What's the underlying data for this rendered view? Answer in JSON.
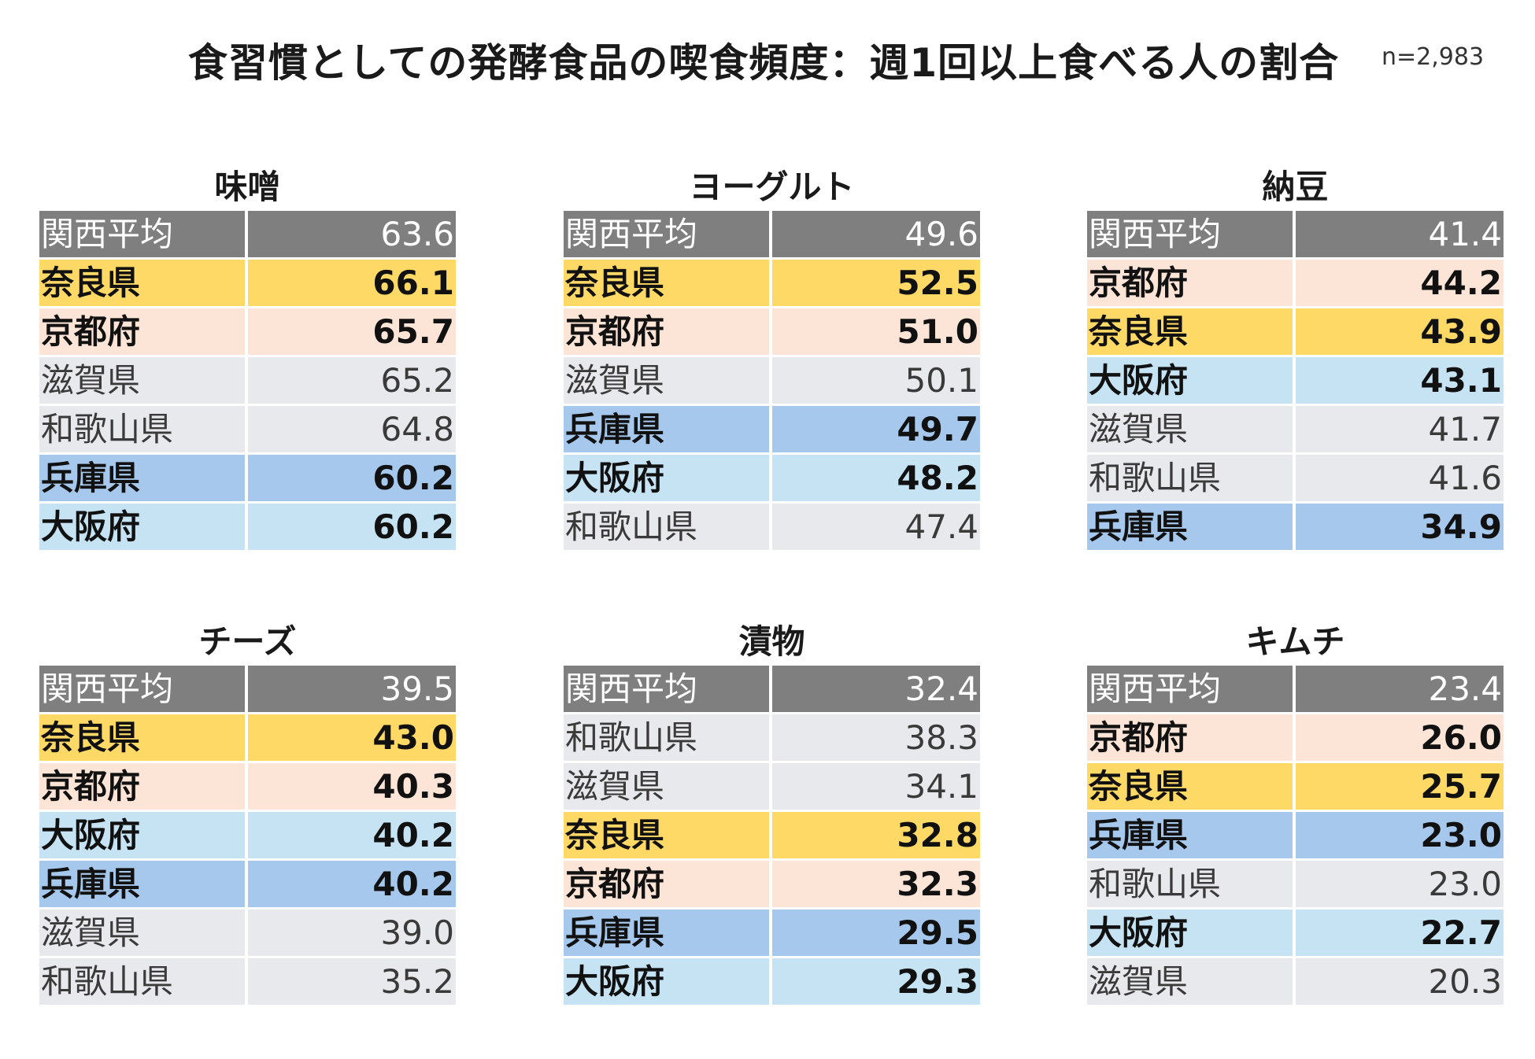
{
  "header": {
    "title": "食習慣としての発酵食品の喫食頻度：週1回以上食べる人の割合",
    "sample": "n=2,983"
  },
  "colors": {
    "average": "#7f7f7f",
    "nara": "#ffd966",
    "kyoto": "#fce4d6",
    "hyogo": "#a6c8ec",
    "osaka": "#c5e3f3",
    "other": "#e7e9ec"
  },
  "chart_data": [
    {
      "type": "table",
      "title": "味噌",
      "rows": [
        {
          "label": "関西平均",
          "value": "63.6",
          "style": "average"
        },
        {
          "label": "奈良県",
          "value": "66.1",
          "style": "nara"
        },
        {
          "label": "京都府",
          "value": "65.7",
          "style": "kyoto"
        },
        {
          "label": "滋賀県",
          "value": "65.2",
          "style": "other"
        },
        {
          "label": "和歌山県",
          "value": "64.8",
          "style": "other"
        },
        {
          "label": "兵庫県",
          "value": "60.2",
          "style": "hyogo"
        },
        {
          "label": "大阪府",
          "value": "60.2",
          "style": "osaka"
        }
      ]
    },
    {
      "type": "table",
      "title": "ヨーグルト",
      "rows": [
        {
          "label": "関西平均",
          "value": "49.6",
          "style": "average"
        },
        {
          "label": "奈良県",
          "value": "52.5",
          "style": "nara"
        },
        {
          "label": "京都府",
          "value": "51.0",
          "style": "kyoto"
        },
        {
          "label": "滋賀県",
          "value": "50.1",
          "style": "other"
        },
        {
          "label": "兵庫県",
          "value": "49.7",
          "style": "hyogo"
        },
        {
          "label": "大阪府",
          "value": "48.2",
          "style": "osaka"
        },
        {
          "label": "和歌山県",
          "value": "47.4",
          "style": "other"
        }
      ]
    },
    {
      "type": "table",
      "title": "納豆",
      "rows": [
        {
          "label": "関西平均",
          "value": "41.4",
          "style": "average"
        },
        {
          "label": "京都府",
          "value": "44.2",
          "style": "kyoto"
        },
        {
          "label": "奈良県",
          "value": "43.9",
          "style": "nara"
        },
        {
          "label": "大阪府",
          "value": "43.1",
          "style": "osaka"
        },
        {
          "label": "滋賀県",
          "value": "41.7",
          "style": "other"
        },
        {
          "label": "和歌山県",
          "value": "41.6",
          "style": "other"
        },
        {
          "label": "兵庫県",
          "value": "34.9",
          "style": "hyogo"
        }
      ]
    },
    {
      "type": "table",
      "title": "チーズ",
      "rows": [
        {
          "label": "関西平均",
          "value": "39.5",
          "style": "average"
        },
        {
          "label": "奈良県",
          "value": "43.0",
          "style": "nara"
        },
        {
          "label": "京都府",
          "value": "40.3",
          "style": "kyoto"
        },
        {
          "label": "大阪府",
          "value": "40.2",
          "style": "osaka"
        },
        {
          "label": "兵庫県",
          "value": "40.2",
          "style": "hyogo"
        },
        {
          "label": "滋賀県",
          "value": "39.0",
          "style": "other"
        },
        {
          "label": "和歌山県",
          "value": "35.2",
          "style": "other"
        }
      ]
    },
    {
      "type": "table",
      "title": "漬物",
      "rows": [
        {
          "label": "関西平均",
          "value": "32.4",
          "style": "average"
        },
        {
          "label": "和歌山県",
          "value": "38.3",
          "style": "other"
        },
        {
          "label": "滋賀県",
          "value": "34.1",
          "style": "other"
        },
        {
          "label": "奈良県",
          "value": "32.8",
          "style": "nara"
        },
        {
          "label": "京都府",
          "value": "32.3",
          "style": "kyoto"
        },
        {
          "label": "兵庫県",
          "value": "29.5",
          "style": "hyogo"
        },
        {
          "label": "大阪府",
          "value": "29.3",
          "style": "osaka"
        }
      ]
    },
    {
      "type": "table",
      "title": "キムチ",
      "rows": [
        {
          "label": "関西平均",
          "value": "23.4",
          "style": "average"
        },
        {
          "label": "京都府",
          "value": "26.0",
          "style": "kyoto"
        },
        {
          "label": "奈良県",
          "value": "25.7",
          "style": "nara"
        },
        {
          "label": "兵庫県",
          "value": "23.0",
          "style": "hyogo"
        },
        {
          "label": "和歌山県",
          "value": "23.0",
          "style": "other"
        },
        {
          "label": "大阪府",
          "value": "22.7",
          "style": "osaka"
        },
        {
          "label": "滋賀県",
          "value": "20.3",
          "style": "other"
        }
      ]
    }
  ]
}
